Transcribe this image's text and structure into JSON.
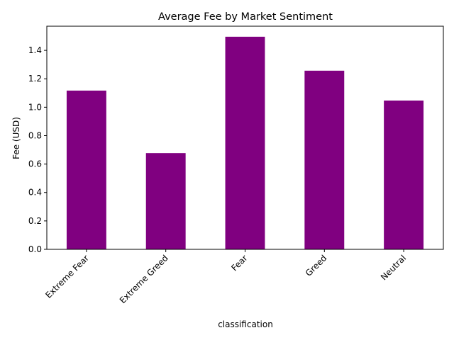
{
  "chart_data": {
    "type": "bar",
    "title": "Average Fee by Market Sentiment",
    "xlabel": "classification",
    "ylabel": "Fee (USD)",
    "categories": [
      "Extreme Fear",
      "Extreme Greed",
      "Fear",
      "Greed",
      "Neutral"
    ],
    "values": [
      1.117,
      0.677,
      1.496,
      1.257,
      1.047
    ],
    "ylim": [
      0,
      1.57
    ],
    "yticks": [
      "0.0",
      "0.2",
      "0.4",
      "0.6",
      "0.8",
      "1.0",
      "1.2",
      "1.4"
    ],
    "bar_color": "#800080",
    "grid": false,
    "legend": "none"
  }
}
